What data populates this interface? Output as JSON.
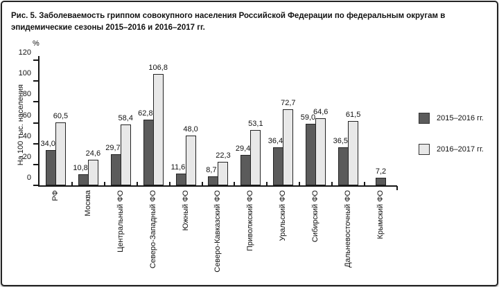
{
  "title": "Рис. 5. Заболеваемость гриппом совокупного населения Российской Федерации по федеральным округам в эпидемические сезоны 2015–2016 и 2016–2017 гг.",
  "colors": {
    "series_2015_2016": "#5b5b5b",
    "series_2016_2017": "#e8e8e8",
    "axis": "#161616",
    "text": "#111111"
  },
  "chart_data": {
    "type": "bar",
    "title": "Рис. 5. Заболеваемость гриппом совокупного населения Российской Федерации по федеральным округам в эпидемические сезоны 2015–2016 и 2016–2017 гг.",
    "categories": [
      "РФ",
      "Москва",
      "Центральный ФО",
      "Северо-Западный ФО",
      "Южный ФО",
      "Северо-Кавказский ФО",
      "Приволжский ФО",
      "Уральский ФО",
      "Сибирский ФО",
      "Дальневосточный ФО",
      "Крымский ФО"
    ],
    "series": [
      {
        "name": "2015–2016 гг.",
        "color": "#5b5b5b",
        "values": [
          34.0,
          10.8,
          29.7,
          62.8,
          11.6,
          8.7,
          29.4,
          36.4,
          59.0,
          36.5,
          7.2
        ],
        "value_labels": [
          "34,0",
          "10,8",
          "29,7",
          "62,8",
          "11,6",
          "8,7",
          "29,4",
          "36,4",
          "59,0",
          "36,5",
          "7,2"
        ]
      },
      {
        "name": "2016–2017 гг.",
        "color": "#e8e8e8",
        "values": [
          60.5,
          24.6,
          58.4,
          106.8,
          48.0,
          22.3,
          53.1,
          72.7,
          64.6,
          61.5,
          null
        ],
        "value_labels": [
          "60,5",
          "24,6",
          "58,4",
          "106,8",
          "48,0",
          "22,3",
          "53,1",
          "72,7",
          "64,6",
          "61,5",
          null
        ]
      }
    ],
    "ylabel": "На 100 тыс. населения",
    "y_unit": "%",
    "xlabel": "",
    "ylim": [
      0,
      120
    ],
    "yticks": [
      0,
      20,
      40,
      60,
      80,
      100,
      120
    ],
    "grid": false,
    "legend_position": "right"
  },
  "legend": {
    "items": [
      {
        "label": "2015–2016 гг.",
        "color": "#5b5b5b"
      },
      {
        "label": "2016–2017 гг.",
        "color": "#e8e8e8"
      }
    ]
  }
}
